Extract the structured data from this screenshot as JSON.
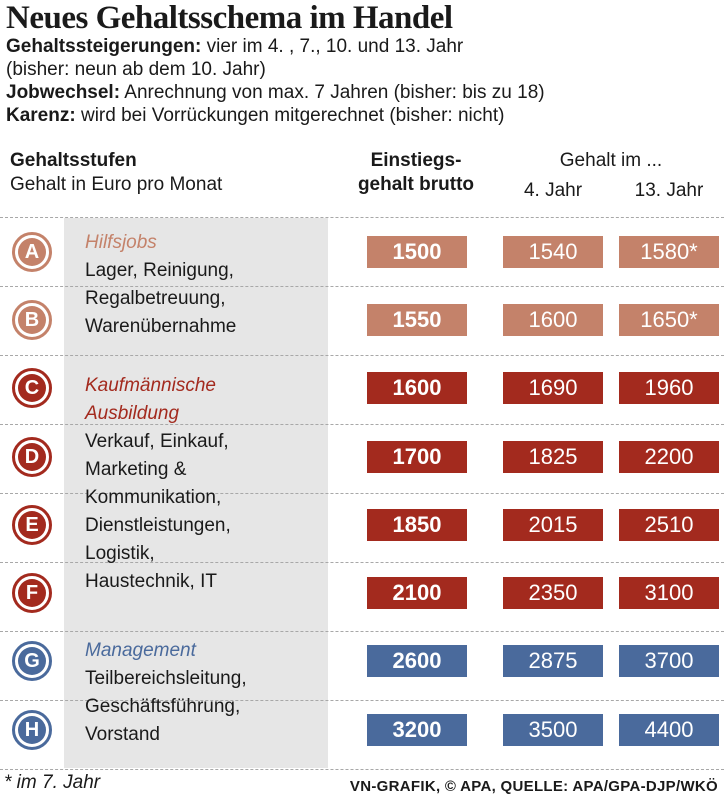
{
  "title": "Neues Gehaltsschema im Handel",
  "info": [
    {
      "label": "Gehaltssteigerungen:",
      "text": " vier im 4. , 7., 10. und 13. Jahr"
    },
    {
      "label": "",
      "text": "(bisher: neun ab dem 10. Jahr)"
    },
    {
      "label": "Jobwechsel:",
      "text": " Anrechnung von max. 7 Jahren (bisher: bis zu 18)"
    },
    {
      "label": "Karenz:",
      "text": " wird bei Vorrückungen mitgerechnet (bisher: nicht)"
    }
  ],
  "headers": {
    "stufen_title": "Gehaltsstufen",
    "stufen_sub": "Gehalt in Euro pro Monat",
    "einstieg_1": "Einstiegs-",
    "einstieg_2": "gehalt brutto",
    "gehalt_im": "Gehalt im ...",
    "year4": "4. Jahr",
    "year13": "13. Jahr"
  },
  "categories": [
    {
      "name": "Hilfsjobs",
      "lines": [
        "Lager, Reinigung,",
        "Regalbetreuung,",
        "Warenübernahme"
      ]
    },
    {
      "name_lines": [
        "Kaufmännische",
        "Ausbildung"
      ],
      "lines": [
        "Verkauf, Einkauf,",
        "Marketing &",
        "Kommunikation,",
        "Dienstleistungen,",
        "Logistik,",
        "Haustechnik, IT"
      ]
    },
    {
      "name": "Management",
      "lines": [
        "Teilbereichsleitung,",
        "Geschäftsführung,",
        "Vorstand"
      ]
    }
  ],
  "colors": {
    "hilfsjobs": "#c4826a",
    "kaufmaennisch": "#a32a1e",
    "management": "#4a6a9c"
  },
  "chart_data": {
    "type": "table",
    "columns": [
      "Gehaltsstufen",
      "Einstiegsgehalt brutto",
      "4. Jahr",
      "13. Jahr"
    ],
    "rows": [
      {
        "stufe": "A",
        "group": "hilfsjobs",
        "einstieg": "1500",
        "jahr4": "1540",
        "jahr13": "1580*"
      },
      {
        "stufe": "B",
        "group": "hilfsjobs",
        "einstieg": "1550",
        "jahr4": "1600",
        "jahr13": "1650*"
      },
      {
        "stufe": "C",
        "group": "kaufmaennisch",
        "einstieg": "1600",
        "jahr4": "1690",
        "jahr13": "1960"
      },
      {
        "stufe": "D",
        "group": "kaufmaennisch",
        "einstieg": "1700",
        "jahr4": "1825",
        "jahr13": "2200"
      },
      {
        "stufe": "E",
        "group": "kaufmaennisch",
        "einstieg": "1850",
        "jahr4": "2015",
        "jahr13": "2510"
      },
      {
        "stufe": "F",
        "group": "kaufmaennisch",
        "einstieg": "2100",
        "jahr4": "2350",
        "jahr13": "3100"
      },
      {
        "stufe": "G",
        "group": "management",
        "einstieg": "2600",
        "jahr4": "2875",
        "jahr13": "3700"
      },
      {
        "stufe": "H",
        "group": "management",
        "einstieg": "3200",
        "jahr4": "3500",
        "jahr13": "4400"
      }
    ]
  },
  "footnote": "* im 7. Jahr",
  "source": "VN-GRAFIK, © APA, QUELLE: APA/GPA-DJP/WKÖ"
}
